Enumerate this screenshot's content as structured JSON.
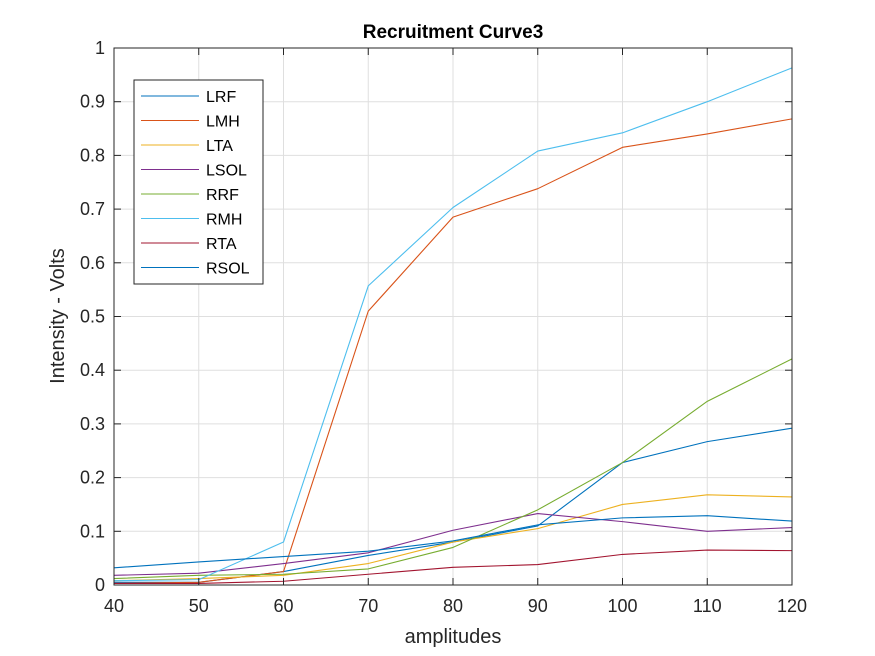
{
  "chart_data": {
    "type": "line",
    "title": "Recruitment Curve3",
    "xlabel": "amplitudes",
    "ylabel": "Intensity - Volts",
    "xlim": [
      40,
      120
    ],
    "ylim": [
      0,
      1
    ],
    "x_ticks": [
      40,
      50,
      60,
      70,
      80,
      90,
      100,
      110,
      120
    ],
    "x_tick_labels": [
      "40",
      "50",
      "60",
      "70",
      "80",
      "90",
      "100",
      "110",
      "120"
    ],
    "y_ticks": [
      0,
      0.1,
      0.2,
      0.3,
      0.4,
      0.5,
      0.6,
      0.7,
      0.8,
      0.9,
      1
    ],
    "y_tick_labels": [
      "0",
      "0.1",
      "0.2",
      "0.3",
      "0.4",
      "0.5",
      "0.6",
      "0.7",
      "0.8",
      "0.9",
      "1"
    ],
    "grid": true,
    "legend_position": "top-left",
    "x": [
      40,
      50,
      60,
      70,
      80,
      90,
      100,
      110,
      120
    ],
    "series": [
      {
        "name": "LRF",
        "color": "#0072BD",
        "values": [
          0.005,
          0.005,
          0.025,
          0.055,
          0.08,
          0.11,
          0.228,
          0.267,
          0.292
        ]
      },
      {
        "name": "LMH",
        "color": "#D95319",
        "values": [
          0.003,
          0.005,
          0.025,
          0.51,
          0.685,
          0.738,
          0.815,
          0.84,
          0.868
        ]
      },
      {
        "name": "LTA",
        "color": "#EDB120",
        "values": [
          0.008,
          0.012,
          0.018,
          0.04,
          0.08,
          0.105,
          0.15,
          0.168,
          0.164
        ]
      },
      {
        "name": "LSOL",
        "color": "#7E2F8E",
        "values": [
          0.018,
          0.022,
          0.04,
          0.06,
          0.102,
          0.133,
          0.118,
          0.1,
          0.107
        ]
      },
      {
        "name": "RRF",
        "color": "#77AC30",
        "values": [
          0.012,
          0.018,
          0.02,
          0.03,
          0.07,
          0.14,
          0.228,
          0.342,
          0.421
        ]
      },
      {
        "name": "RMH",
        "color": "#4DBEEE",
        "values": [
          0.008,
          0.01,
          0.08,
          0.557,
          0.703,
          0.808,
          0.842,
          0.9,
          0.963
        ]
      },
      {
        "name": "RTA",
        "color": "#A2142F",
        "values": [
          0.003,
          0.003,
          0.007,
          0.02,
          0.033,
          0.038,
          0.057,
          0.065,
          0.064
        ]
      },
      {
        "name": "RSOL",
        "color": "#0072BD",
        "values": [
          0.032,
          0.043,
          0.053,
          0.063,
          0.082,
          0.112,
          0.125,
          0.129,
          0.119
        ]
      }
    ]
  }
}
